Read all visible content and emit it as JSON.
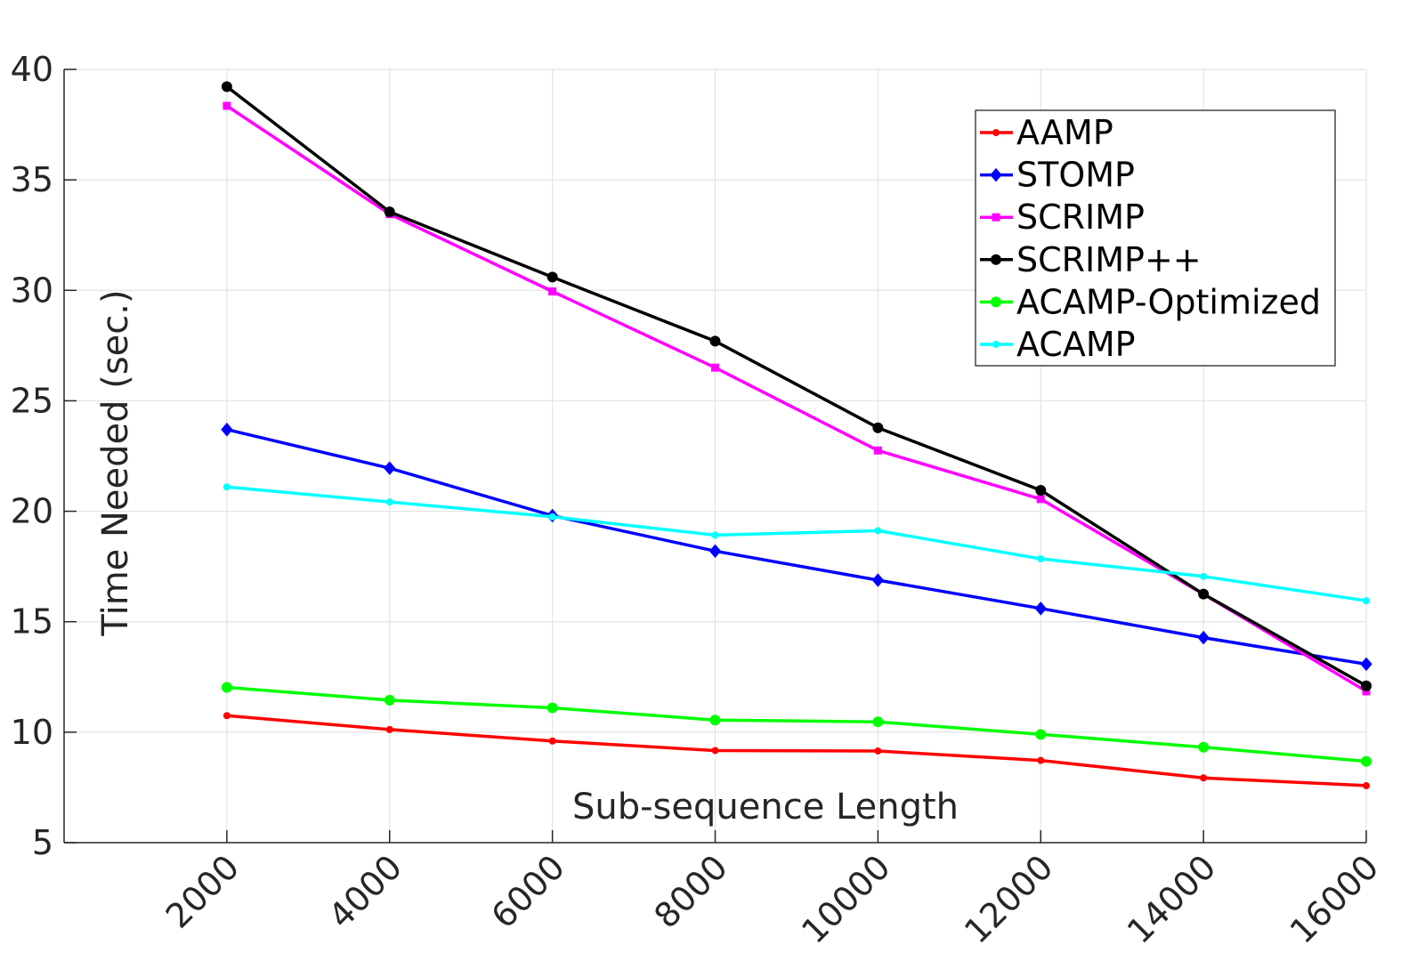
{
  "chart_data": {
    "type": "line",
    "title": "",
    "xlabel": "Sub-sequence Length",
    "ylabel": "Time Needed (sec.)",
    "x": [
      2000,
      4000,
      6000,
      8000,
      10000,
      12000,
      14000,
      16000
    ],
    "x_tick_labels": [
      "2000",
      "4000",
      "6000",
      "8000",
      "10000",
      "12000",
      "14000",
      "16000"
    ],
    "y_ticks": [
      5,
      10,
      15,
      20,
      25,
      30,
      35,
      40
    ],
    "y_tick_labels": [
      "5",
      "10",
      "15",
      "20",
      "25",
      "30",
      "35",
      "40"
    ],
    "xlim": [
      0,
      16000
    ],
    "ylim": [
      5,
      40
    ],
    "grid": true,
    "legend_position": "top-right",
    "series": [
      {
        "name": "AAMP",
        "color": "#ff0000",
        "marker": "dot",
        "values": [
          10.75,
          10.12,
          9.6,
          9.17,
          9.15,
          8.72,
          7.93,
          7.58
        ]
      },
      {
        "name": "STOMP",
        "color": "#0000ff",
        "marker": "diamond",
        "values": [
          23.7,
          21.95,
          19.8,
          18.2,
          16.88,
          15.6,
          14.28,
          13.08
        ]
      },
      {
        "name": "SCRIMP",
        "color": "#ff00ff",
        "marker": "square",
        "values": [
          38.35,
          33.45,
          29.95,
          26.5,
          22.75,
          20.55,
          16.25,
          11.85
        ]
      },
      {
        "name": "SCRIMP++",
        "color": "#000000",
        "marker": "circle",
        "values": [
          39.22,
          33.55,
          30.6,
          27.7,
          23.78,
          20.95,
          16.25,
          12.1
        ]
      },
      {
        "name": "ACAMP-Optimized",
        "color": "#00ff00",
        "marker": "circle",
        "values": [
          12.03,
          11.45,
          11.1,
          10.55,
          10.47,
          9.9,
          9.32,
          8.68
        ]
      },
      {
        "name": "ACAMP",
        "color": "#00ffff",
        "marker": "dot",
        "values": [
          21.1,
          20.42,
          19.75,
          18.92,
          19.12,
          17.85,
          17.05,
          15.95
        ]
      }
    ]
  }
}
